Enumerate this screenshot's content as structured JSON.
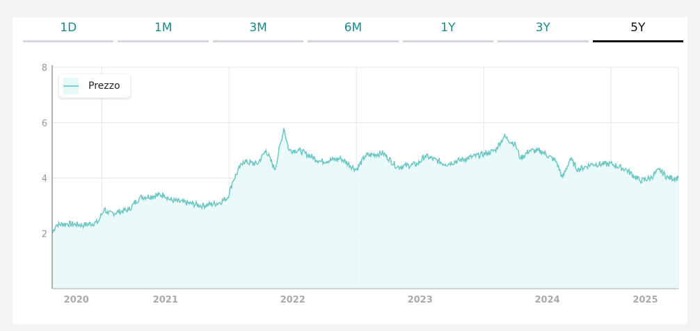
{
  "tabs": [
    {
      "label": "1D",
      "active": false
    },
    {
      "label": "1M",
      "active": false
    },
    {
      "label": "3M",
      "active": false
    },
    {
      "label": "6M",
      "active": false
    },
    {
      "label": "1Y",
      "active": false
    },
    {
      "label": "3Y",
      "active": false
    },
    {
      "label": "5Y",
      "active": true
    }
  ],
  "colors": {
    "line": "#6cc7c2",
    "fill": "#e8f9f9",
    "accent": "#1a8a86"
  },
  "chart_data": {
    "type": "area",
    "title": "",
    "legend": {
      "entries": [
        "Prezzo"
      ],
      "placement": "top-left"
    },
    "xlim": [
      2020.61,
      2025.53
    ],
    "ylim": [
      0,
      8
    ],
    "yticks": [
      2,
      4,
      6,
      8
    ],
    "xticks": [
      {
        "label": "2020",
        "at": 2020.8
      },
      {
        "label": "2021",
        "at": 2021.5
      },
      {
        "label": "2022",
        "at": 2022.5
      },
      {
        "label": "2023",
        "at": 2023.5
      },
      {
        "label": "2024",
        "at": 2024.5
      },
      {
        "label": "2025",
        "at": 2025.27
      }
    ],
    "xgrid": [
      2021,
      2022,
      2023,
      2024,
      2025
    ],
    "series": [
      {
        "name": "Prezzo",
        "points": [
          [
            2020.61,
            2.0
          ],
          [
            2020.64,
            2.3
          ],
          [
            2020.72,
            2.35
          ],
          [
            2020.86,
            2.3
          ],
          [
            2020.97,
            2.4
          ],
          [
            2021.02,
            2.9
          ],
          [
            2021.05,
            2.7
          ],
          [
            2021.21,
            2.85
          ],
          [
            2021.3,
            3.3
          ],
          [
            2021.49,
            3.4
          ],
          [
            2021.54,
            3.2
          ],
          [
            2021.79,
            3.0
          ],
          [
            2021.92,
            3.1
          ],
          [
            2021.99,
            3.3
          ],
          [
            2022.03,
            3.9
          ],
          [
            2022.11,
            4.6
          ],
          [
            2022.22,
            4.5
          ],
          [
            2022.29,
            5.0
          ],
          [
            2022.36,
            4.3
          ],
          [
            2022.43,
            5.8
          ],
          [
            2022.47,
            5.0
          ],
          [
            2022.55,
            5.0
          ],
          [
            2022.72,
            4.6
          ],
          [
            2022.88,
            4.7
          ],
          [
            2023.0,
            4.3
          ],
          [
            2023.07,
            4.8
          ],
          [
            2023.21,
            4.9
          ],
          [
            2023.32,
            4.4
          ],
          [
            2023.48,
            4.5
          ],
          [
            2023.54,
            4.8
          ],
          [
            2023.7,
            4.5
          ],
          [
            2023.86,
            4.7
          ],
          [
            2024.03,
            4.9
          ],
          [
            2024.09,
            5.0
          ],
          [
            2024.16,
            5.5
          ],
          [
            2024.25,
            5.2
          ],
          [
            2024.29,
            4.7
          ],
          [
            2024.36,
            5.0
          ],
          [
            2024.46,
            4.95
          ],
          [
            2024.57,
            4.6
          ],
          [
            2024.62,
            4.0
          ],
          [
            2024.68,
            4.7
          ],
          [
            2024.74,
            4.3
          ],
          [
            2024.85,
            4.5
          ],
          [
            2025.01,
            4.5
          ],
          [
            2025.12,
            4.3
          ],
          [
            2025.23,
            3.9
          ],
          [
            2025.31,
            4.0
          ],
          [
            2025.38,
            4.3
          ],
          [
            2025.45,
            4.0
          ],
          [
            2025.53,
            4.0
          ]
        ]
      }
    ]
  }
}
